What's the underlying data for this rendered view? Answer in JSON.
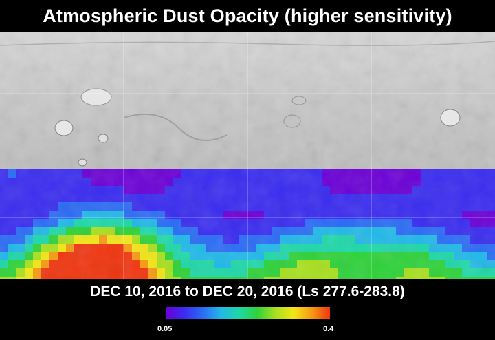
{
  "title": "Atmospheric Dust Opacity (higher sensitivity)",
  "date_range": "DEC 10, 2016 to DEC 20, 2016 (Ls 277.6-283.8)",
  "colorbar": {
    "min_label": "0.05",
    "max_label": "0.4",
    "colors": [
      "#6b00d6",
      "#3a2cf0",
      "#2b6cf5",
      "#22b8e8",
      "#1ed8a8",
      "#2fd23a",
      "#a8e01e",
      "#f2e617",
      "#f79a12",
      "#f0350f"
    ]
  }
}
